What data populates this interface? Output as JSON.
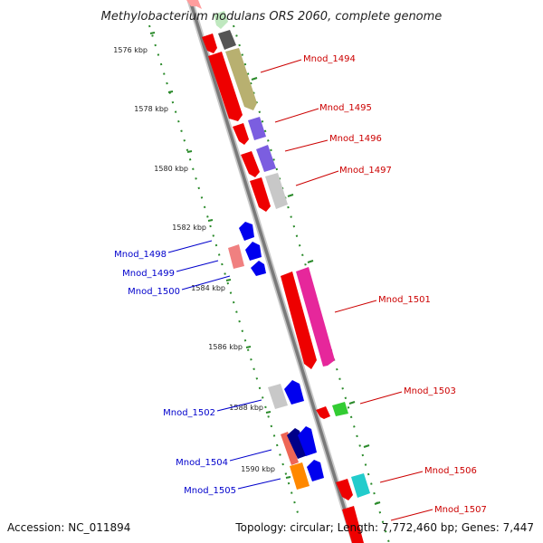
{
  "title": "Methylobacterium nodulans ORS 2060, complete genome",
  "footer": {
    "accession": "Accession: NC_011894",
    "summary": "Topology: circular; Length: 7,772,460 bp; Genes: 7,447"
  },
  "colors": {
    "backbone": "#8a8a8a",
    "tick": "#2a8a2a",
    "forward_label": "#cc0000",
    "reverse_label": "#0000cc"
  },
  "kbp_ticks": [
    {
      "label": "1576 kbp"
    },
    {
      "label": "1578 kbp"
    },
    {
      "label": "1580 kbp"
    },
    {
      "label": "1582 kbp"
    },
    {
      "label": "1584 kbp"
    },
    {
      "label": "1586 kbp"
    },
    {
      "label": "1588 kbp"
    },
    {
      "label": "1590 kbp"
    }
  ],
  "forward_labels": [
    {
      "text": "Mnod_1494"
    },
    {
      "text": "Mnod_1495"
    },
    {
      "text": "Mnod_1496"
    },
    {
      "text": "Mnod_1497"
    },
    {
      "text": "Mnod_1501"
    },
    {
      "text": "Mnod_1503"
    },
    {
      "text": "Mnod_1506"
    },
    {
      "text": "Mnod_1507"
    }
  ],
  "reverse_labels": [
    {
      "text": "Mnod_1498"
    },
    {
      "text": "Mnod_1499"
    },
    {
      "text": "Mnod_1500"
    },
    {
      "text": "Mnod_1502"
    },
    {
      "text": "Mnod_1504"
    },
    {
      "text": "Mnod_1505"
    }
  ]
}
